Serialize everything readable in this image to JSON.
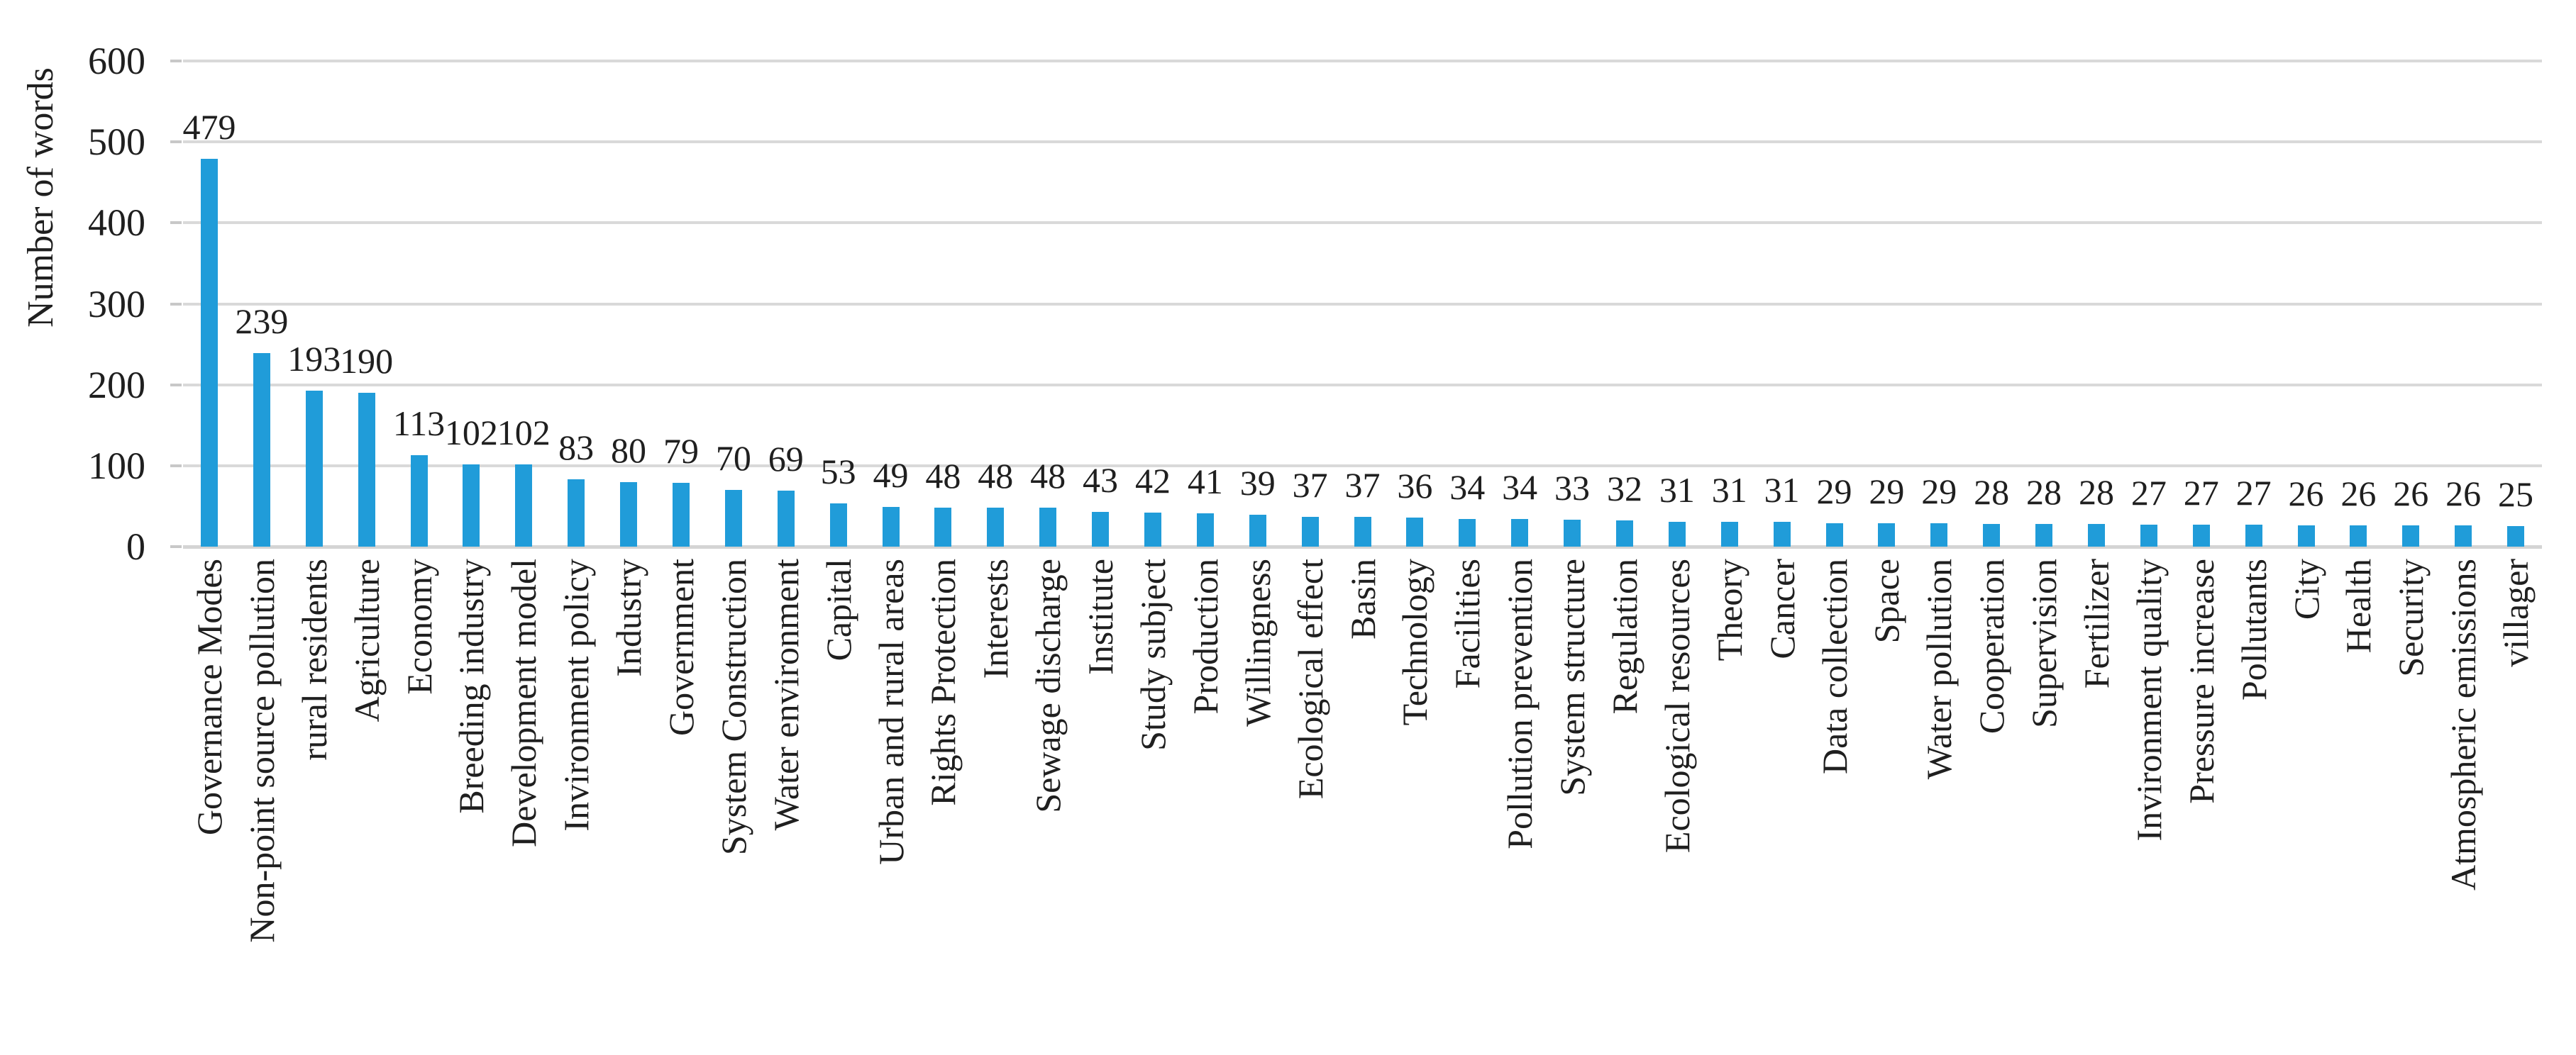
{
  "chart_data": {
    "type": "bar",
    "title": "",
    "ylabel": "Number of words",
    "xlabel": "",
    "ylim": [
      0,
      600
    ],
    "yticks": [
      0,
      100,
      200,
      300,
      400,
      500,
      600
    ],
    "grid": true,
    "legend": "none",
    "value_labels": "above bars",
    "bar_color": "#209CD9",
    "gridline_color": "#D9D9D9",
    "axis_line_color": "#D4D4D4",
    "tick_mark_color": "#C8C8C8",
    "text_color": "#1F1F1F",
    "background_color": "#FFFFFF",
    "categories": [
      "Governance Modes",
      "Non-point source pollution",
      "rural residents",
      "Agriculture",
      "Economy",
      "Breeding industry",
      "Development model",
      "Invironment policy",
      "Industry",
      "Government",
      "System Construction",
      "Water environment",
      "Capital",
      "Urban and rural areas",
      "Rights Protection",
      "Interests",
      "Sewage discharge",
      "Institute",
      "Study subject",
      "Production",
      "Willingness",
      "Ecological effect",
      "Basin",
      "Technology",
      "Facilities",
      "Pollution prevention",
      "System structure",
      "Regulation",
      "Ecological resources",
      "Theory",
      "Cancer",
      "Data collection",
      "Space",
      "Water pollution",
      "Cooperation",
      "Supervision",
      "Fertilizer",
      "Invironment quality",
      "Pressure increase",
      "Pollutants",
      "City",
      "Health",
      "Security",
      "Atmospheric emissions",
      "villager"
    ],
    "values": [
      479,
      239,
      193,
      190,
      113,
      102,
      102,
      83,
      80,
      79,
      70,
      69,
      53,
      49,
      48,
      48,
      48,
      43,
      42,
      41,
      39,
      37,
      37,
      36,
      34,
      34,
      33,
      32,
      31,
      31,
      31,
      29,
      29,
      29,
      28,
      28,
      28,
      27,
      27,
      27,
      26,
      26,
      26,
      26,
      25
    ]
  }
}
